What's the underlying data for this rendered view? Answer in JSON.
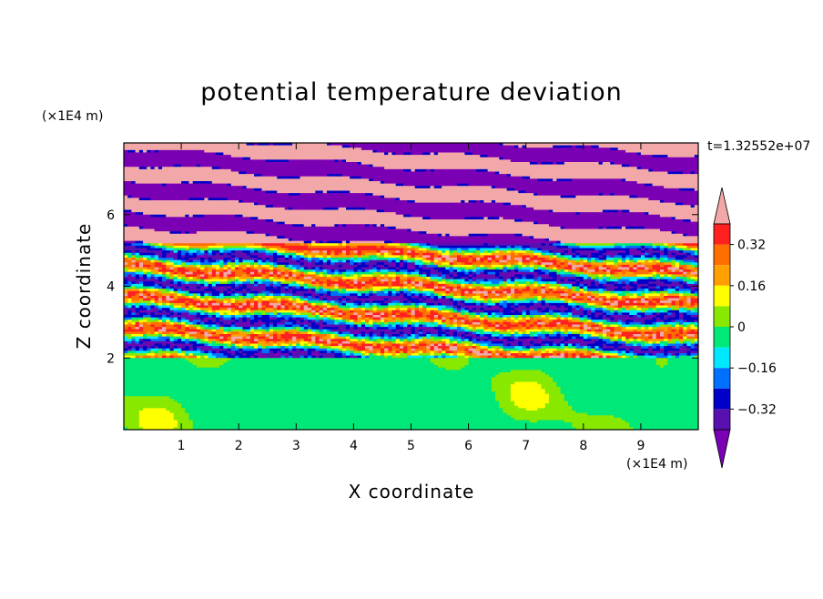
{
  "chart_data": {
    "type": "heatmap",
    "title": "potential temperature deviation",
    "xlabel": "X coordinate",
    "ylabel": "Z coordinate",
    "x_unit": "(×1E4 m)",
    "y_unit": "(×1E4 m)",
    "timestamp": "t=1.32552e+07",
    "xlim": [
      0,
      10
    ],
    "ylim": [
      0,
      8
    ],
    "x_ticks": [
      1,
      2,
      3,
      4,
      5,
      6,
      7,
      8,
      9
    ],
    "y_ticks": [
      2,
      4,
      6
    ],
    "colorbar": {
      "levels": [
        0.4,
        0.32,
        0.24,
        0.16,
        0.08,
        0,
        -0.08,
        -0.16,
        -0.24,
        -0.32,
        -0.4
      ],
      "tick_labels": [
        "0.32",
        "0.16",
        "0",
        "−0.16",
        "−0.32"
      ],
      "tick_values": [
        0.32,
        0.16,
        0,
        -0.16,
        -0.32
      ],
      "colors": [
        "#f2a8a8",
        "#ff2020",
        "#ff6e00",
        "#ffa000",
        "#ffff00",
        "#88e800",
        "#00e878",
        "#00e8ff",
        "#0070ff",
        "#0000c8",
        "#5a10b0",
        "#7a00b4"
      ],
      "extend": "both"
    }
  }
}
